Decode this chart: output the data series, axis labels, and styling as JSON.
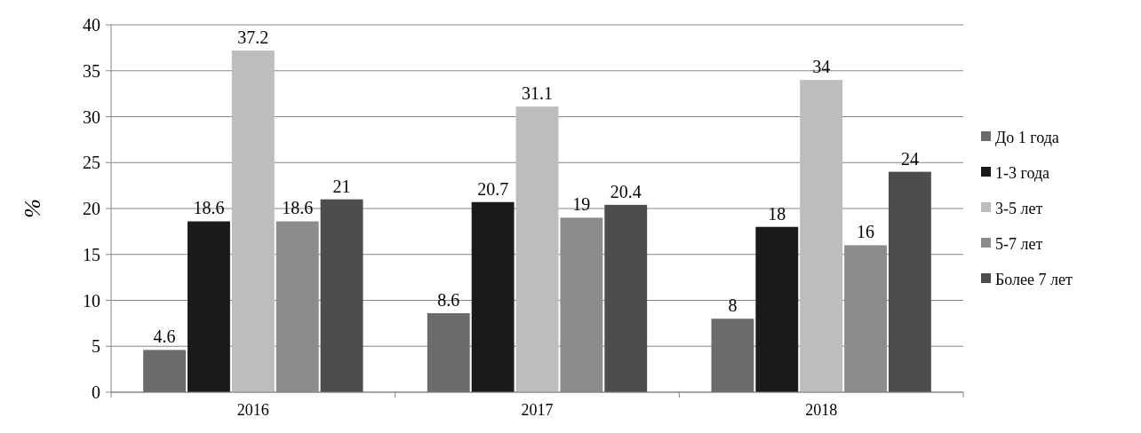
{
  "chart_data": {
    "type": "bar",
    "ylabel": "%",
    "categories": [
      "2016",
      "2017",
      "2018"
    ],
    "series": [
      {
        "name": "До 1 года",
        "color": "#6b6b6b",
        "values": [
          4.6,
          8.6,
          8
        ]
      },
      {
        "name": "1-3 года",
        "color": "#1a1a1a",
        "values": [
          18.6,
          20.7,
          18
        ]
      },
      {
        "name": "3-5 лет",
        "color": "#bdbdbd",
        "values": [
          37.2,
          31.1,
          34
        ]
      },
      {
        "name": "5-7 лет",
        "color": "#8c8c8c",
        "values": [
          18.6,
          19,
          16
        ]
      },
      {
        "name": "Более 7 лет",
        "color": "#4d4d4d",
        "values": [
          21,
          20.4,
          24
        ]
      }
    ],
    "ylim": [
      0,
      40
    ],
    "yticks": [
      0,
      5,
      10,
      15,
      20,
      25,
      30,
      35,
      40
    ],
    "grid": "y",
    "legend": "right",
    "data_labels": true
  }
}
